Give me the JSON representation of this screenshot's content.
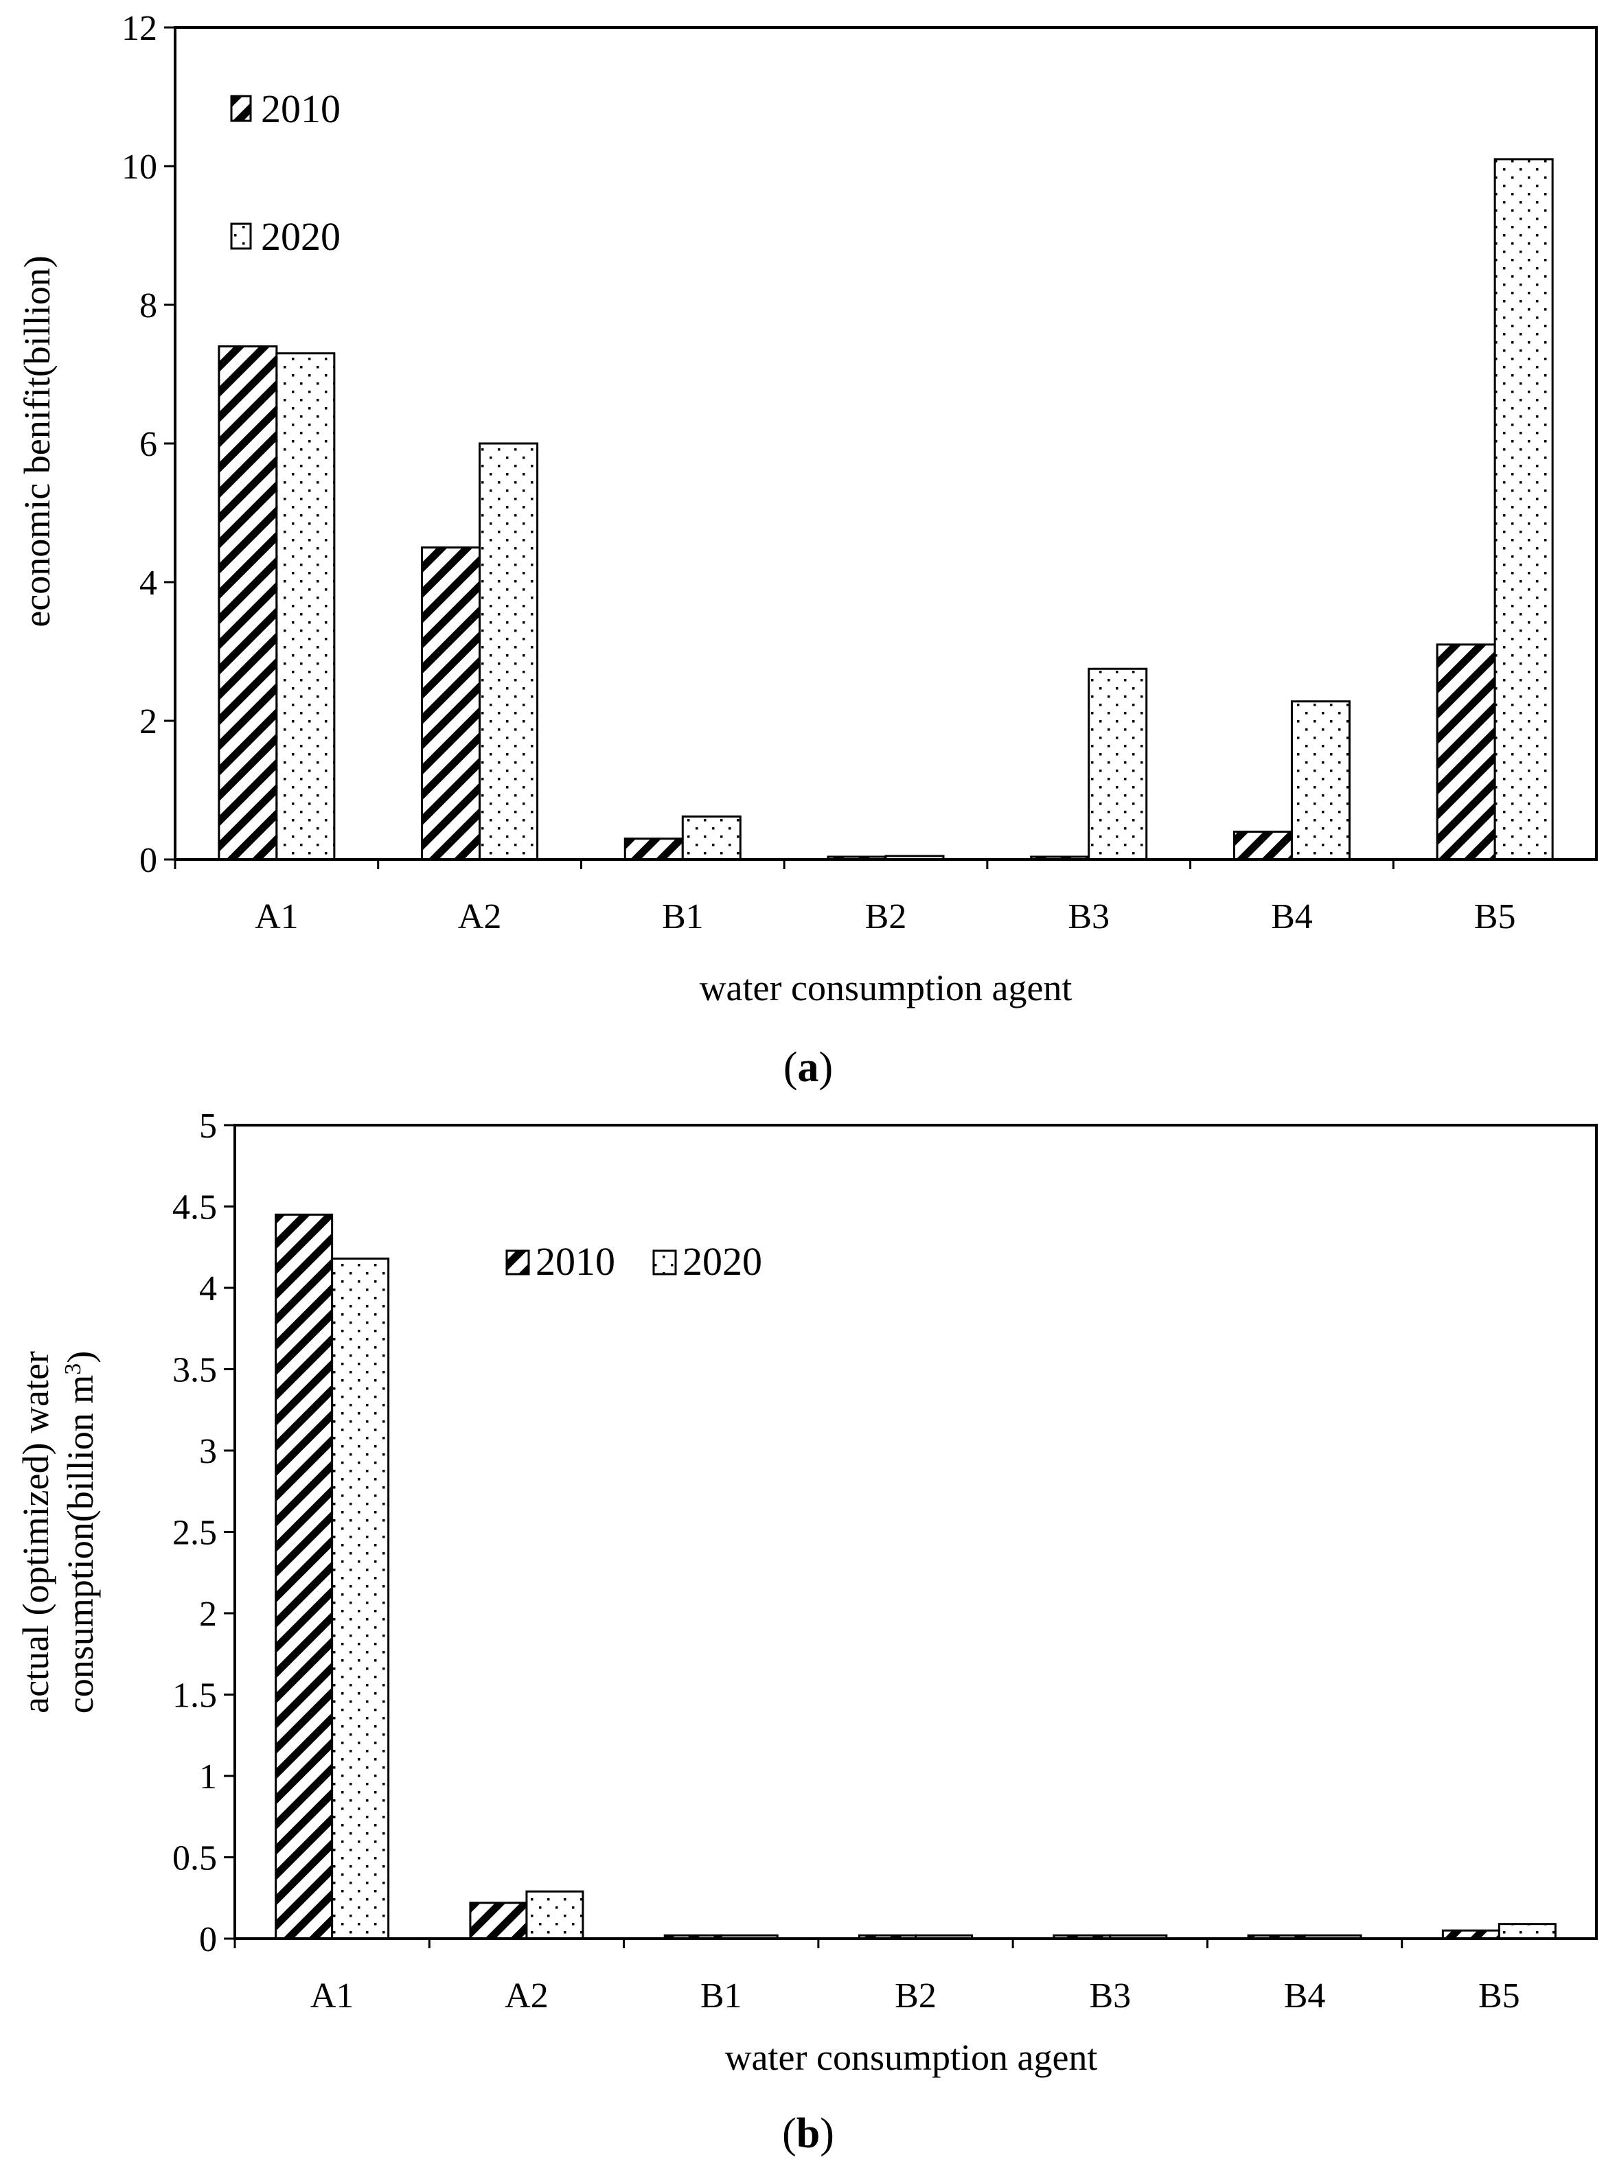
{
  "chart_data": [
    {
      "type": "bar",
      "panel": "a",
      "caption_open": "(",
      "caption_letter": "a",
      "caption_close": ")",
      "categories": [
        "A1",
        "A2",
        "B1",
        "B2",
        "B3",
        "B4",
        "B5"
      ],
      "series": [
        {
          "name": "2010",
          "pattern": "diagonal-hatch",
          "values": [
            7.4,
            4.5,
            0.3,
            0.0,
            0.0,
            0.4,
            3.1
          ]
        },
        {
          "name": "2020",
          "pattern": "dots",
          "values": [
            7.3,
            6.0,
            0.62,
            0.05,
            2.75,
            2.28,
            10.1
          ]
        }
      ],
      "title": "",
      "xlabel": "water consumption agent",
      "ylabel": "economic benifit(billion)",
      "ylim": [
        0,
        12
      ],
      "yticks": [
        "0",
        "2",
        "4",
        "6",
        "8",
        "10",
        "12"
      ],
      "legend": "top-left",
      "grid": false
    },
    {
      "type": "bar",
      "panel": "b",
      "caption_open": "(",
      "caption_letter": "b",
      "caption_close": ")",
      "categories": [
        "A1",
        "A2",
        "B1",
        "B2",
        "B3",
        "B4",
        "B5"
      ],
      "series": [
        {
          "name": "2010",
          "pattern": "diagonal-hatch",
          "values": [
            4.45,
            0.22,
            0.02,
            0.02,
            0.02,
            0.02,
            0.05
          ]
        },
        {
          "name": "2020",
          "pattern": "dots",
          "values": [
            4.18,
            0.29,
            0.02,
            0.02,
            0.02,
            0.02,
            0.09
          ]
        }
      ],
      "title": "",
      "xlabel": "water consumption agent",
      "ylabel_line1": "actual (optimized)  water",
      "ylabel_line2_prefix": "consumption(billion m",
      "ylabel_superscript": "3",
      "ylabel_line2_suffix": ")",
      "ylim": [
        0,
        5
      ],
      "yticks": [
        "0",
        "0.5",
        "1",
        "1.5",
        "2",
        "2.5",
        "3",
        "3.5",
        "4",
        "4.5",
        "5"
      ],
      "legend": "top-center",
      "grid": false
    }
  ]
}
